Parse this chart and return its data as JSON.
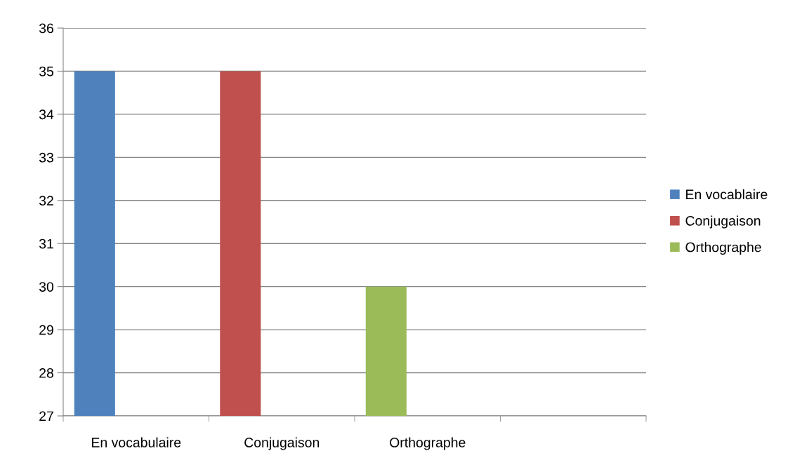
{
  "chart_data": {
    "type": "bar",
    "categories": [
      "En vocabulaire",
      "Conjugaison",
      "Orthographe",
      null
    ],
    "series": [
      {
        "name": "En vocablaire",
        "color": "#4f81bd",
        "values": [
          35,
          null,
          null,
          null
        ]
      },
      {
        "name": "Conjugaison",
        "color": "#c0504d",
        "values": [
          null,
          35,
          null,
          null
        ]
      },
      {
        "name": "Orthographe",
        "color": "#9bbb59",
        "values": [
          null,
          null,
          30,
          null
        ]
      }
    ],
    "ylim": [
      27,
      36
    ],
    "yticks": [
      27,
      28,
      29,
      30,
      31,
      32,
      33,
      34,
      35,
      36
    ],
    "grid": "y",
    "legend": "right"
  }
}
